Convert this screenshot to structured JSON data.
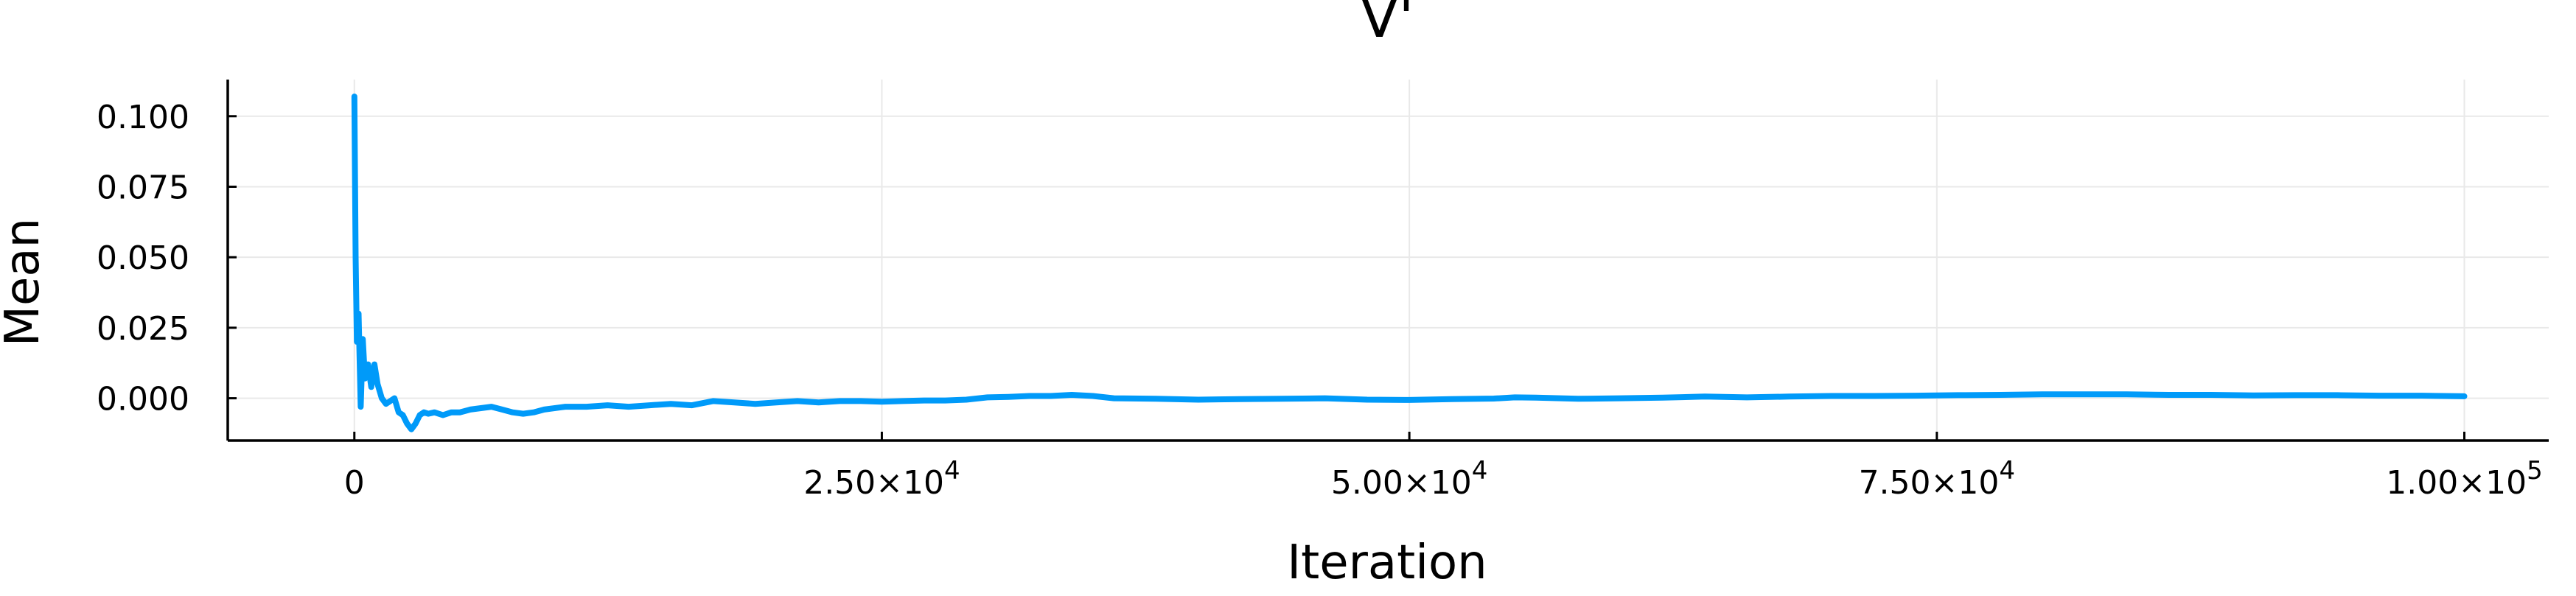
{
  "chart_data": {
    "type": "line",
    "title": "V'",
    "xlabel": "Iteration",
    "ylabel": "Mean",
    "xlim": [
      -6000,
      104000
    ],
    "ylim": [
      -0.015,
      0.113
    ],
    "grid": true,
    "legend": "none",
    "x_ticks": [
      {
        "value": 0,
        "base": "0",
        "exp": ""
      },
      {
        "value": 25000,
        "base": "2.50×10",
        "exp": "4"
      },
      {
        "value": 50000,
        "base": "5.00×10",
        "exp": "4"
      },
      {
        "value": 75000,
        "base": "7.50×10",
        "exp": "4"
      },
      {
        "value": 100000,
        "base": "1.00×10",
        "exp": "5"
      }
    ],
    "y_ticks": [
      {
        "value": 0.1,
        "label": "0.100"
      },
      {
        "value": 0.075,
        "label": "0.075"
      },
      {
        "value": 0.05,
        "label": "0.050"
      },
      {
        "value": 0.025,
        "label": "0.025"
      },
      {
        "value": 0.0,
        "label": "0.000"
      }
    ],
    "series": [
      {
        "color": "#009af9",
        "x": [
          0,
          60,
          120,
          200,
          300,
          400,
          500,
          650,
          800,
          950,
          1100,
          1300,
          1500,
          1700,
          1900,
          2100,
          2300,
          2500,
          2700,
          2900,
          3100,
          3300,
          3500,
          3800,
          4200,
          4600,
          5000,
          5500,
          6000,
          6500,
          7000,
          7500,
          8000,
          8500,
          9000,
          10000,
          11000,
          12000,
          13000,
          14000,
          15000,
          16000,
          17000,
          18000,
          19000,
          20000,
          21000,
          22000,
          23000,
          24000,
          25000,
          26000,
          27000,
          28000,
          29000,
          30000,
          31000,
          32000,
          33000,
          34000,
          35000,
          36000,
          38000,
          40000,
          42000,
          44000,
          46000,
          48000,
          50000,
          52000,
          54000,
          55000,
          56000,
          58000,
          60000,
          62000,
          64000,
          66000,
          68000,
          70000,
          72000,
          74000,
          76000,
          78000,
          80000,
          82000,
          84000,
          86000,
          88000,
          90000,
          92000,
          94000,
          96000,
          98000,
          100000
        ],
        "y": [
          0.107,
          0.05,
          0.02,
          0.03,
          -0.003,
          0.021,
          0.007,
          0.012,
          0.004,
          0.012,
          0.005,
          0.0,
          -0.002,
          -0.001,
          0.0,
          -0.005,
          -0.006,
          -0.009,
          -0.011,
          -0.009,
          -0.006,
          -0.005,
          -0.0055,
          -0.005,
          -0.006,
          -0.005,
          -0.005,
          -0.004,
          -0.0035,
          -0.003,
          -0.004,
          -0.005,
          -0.0055,
          -0.005,
          -0.004,
          -0.003,
          -0.003,
          -0.0025,
          -0.003,
          -0.0025,
          -0.002,
          -0.0025,
          -0.001,
          -0.0015,
          -0.002,
          -0.0015,
          -0.001,
          -0.0015,
          -0.001,
          -0.001,
          -0.0012,
          -0.001,
          -0.0008,
          -0.0008,
          -0.0005,
          0.0003,
          0.0005,
          0.0008,
          0.0008,
          0.0012,
          0.0008,
          0.0,
          -0.0002,
          -0.0005,
          -0.0003,
          -0.0002,
          0.0,
          -0.0005,
          -0.0006,
          -0.0003,
          -0.0001,
          0.0003,
          0.0002,
          -0.0002,
          0.0,
          0.0002,
          0.0006,
          0.0003,
          0.0006,
          0.0008,
          0.0008,
          0.0009,
          0.0011,
          0.0012,
          0.0014,
          0.0014,
          0.0014,
          0.0012,
          0.0012,
          0.001,
          0.0011,
          0.0011,
          0.0009,
          0.0009,
          0.0007
        ]
      }
    ]
  }
}
